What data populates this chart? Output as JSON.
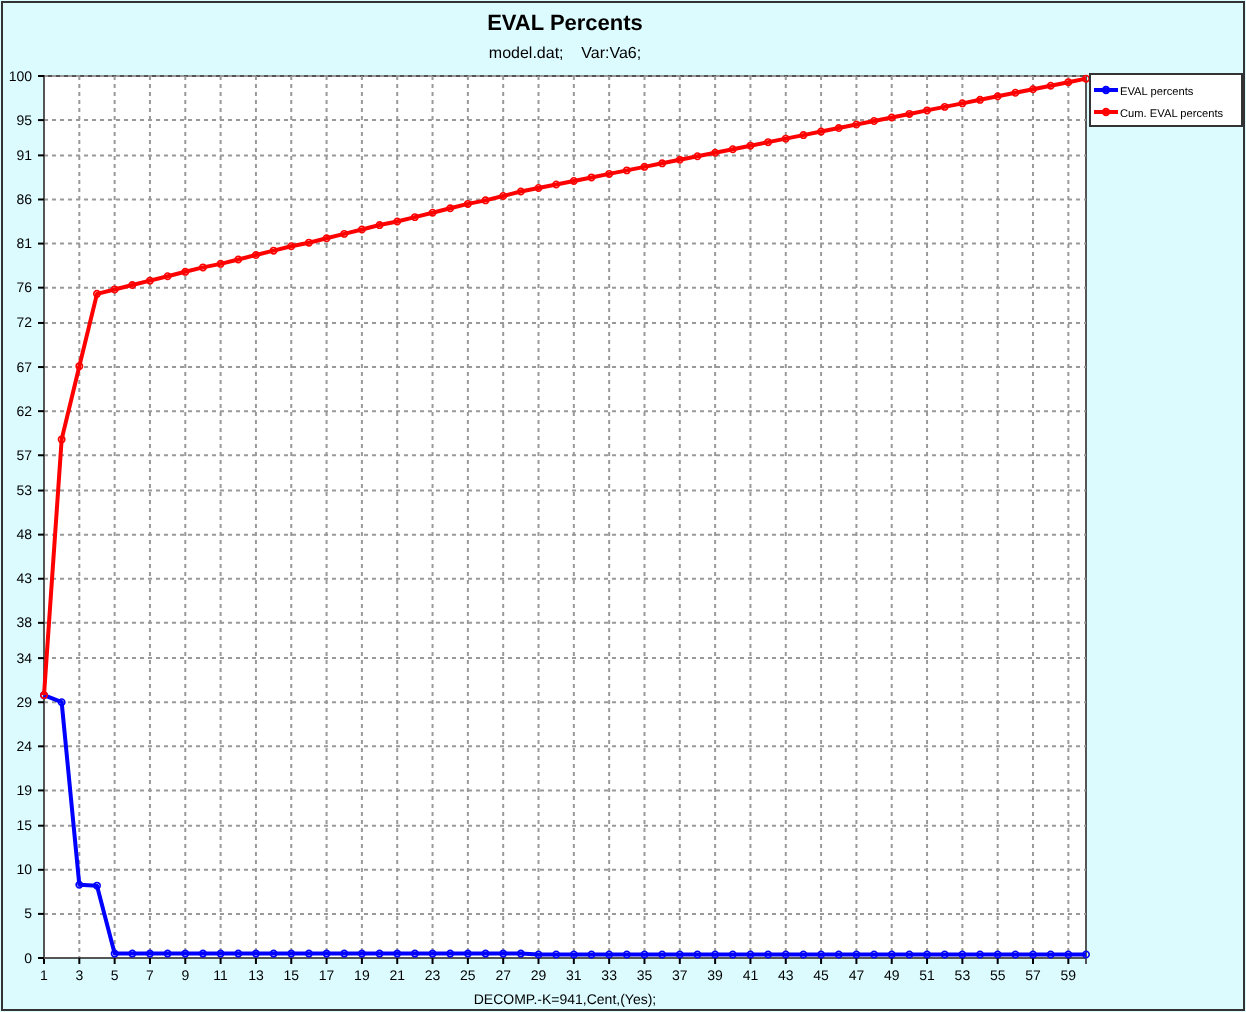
{
  "chart_data": {
    "type": "line",
    "title": "EVAL Percents",
    "subtitle": "model.dat;    Var:Va6;",
    "xlabel": "DECOMP.-K=941,Cent,(Yes);",
    "x": [
      1,
      2,
      3,
      4,
      5,
      6,
      7,
      8,
      9,
      10,
      11,
      12,
      13,
      14,
      15,
      16,
      17,
      18,
      19,
      20,
      21,
      22,
      23,
      24,
      25,
      26,
      27,
      28,
      29,
      30,
      31,
      32,
      33,
      34,
      35,
      36,
      37,
      38,
      39,
      40,
      41,
      42,
      43,
      44,
      45,
      46,
      47,
      48,
      49,
      50,
      51,
      52,
      53,
      54,
      55,
      56,
      57,
      58,
      59,
      60
    ],
    "series": [
      {
        "name": "EVAL percents",
        "color": "#0000ff",
        "values": [
          29.8,
          29,
          8.3,
          8.2,
          0.5,
          0.5,
          0.5,
          0.5,
          0.5,
          0.5,
          0.5,
          0.5,
          0.5,
          0.5,
          0.5,
          0.5,
          0.5,
          0.5,
          0.5,
          0.5,
          0.5,
          0.5,
          0.5,
          0.5,
          0.5,
          0.5,
          0.5,
          0.5,
          0.4,
          0.4,
          0.4,
          0.4,
          0.4,
          0.4,
          0.4,
          0.4,
          0.4,
          0.4,
          0.4,
          0.4,
          0.4,
          0.4,
          0.4,
          0.4,
          0.4,
          0.4,
          0.4,
          0.4,
          0.4,
          0.4,
          0.4,
          0.4,
          0.4,
          0.4,
          0.4,
          0.4,
          0.4,
          0.4,
          0.4,
          0.4
        ]
      },
      {
        "name": "Cum. EVAL percents",
        "color": "#ff0000",
        "values": [
          29.8,
          58.8,
          67.1,
          75.3,
          75.8,
          76.3,
          76.8,
          77.3,
          77.8,
          78.3,
          78.7,
          79.2,
          79.7,
          80.2,
          80.7,
          81.1,
          81.6,
          82.1,
          82.6,
          83.1,
          83.5,
          84,
          84.5,
          85,
          85.5,
          85.9,
          86.4,
          86.9,
          87.3,
          87.7,
          88.1,
          88.5,
          88.9,
          89.3,
          89.7,
          90.1,
          90.5,
          90.9,
          91.3,
          91.7,
          92.1,
          92.5,
          92.9,
          93.3,
          93.7,
          94.1,
          94.5,
          94.9,
          95.3,
          95.7,
          96.1,
          96.5,
          96.9,
          97.3,
          97.7,
          98.1,
          98.5,
          98.9,
          99.3,
          99.7
        ]
      }
    ],
    "xlim": [
      1,
      60
    ],
    "xticks": [
      1,
      3,
      5,
      7,
      9,
      11,
      13,
      15,
      17,
      19,
      21,
      23,
      25,
      27,
      29,
      31,
      33,
      35,
      37,
      39,
      41,
      43,
      45,
      47,
      49,
      51,
      53,
      55,
      57,
      59
    ],
    "ylim": [
      0,
      100
    ],
    "yticks": [
      0,
      5,
      10,
      15,
      19,
      24,
      29,
      34,
      38,
      43,
      48,
      53,
      57,
      62,
      67,
      72,
      76,
      81,
      86,
      91,
      95,
      100
    ],
    "grid": true,
    "legend": "top right",
    "marker": "circle",
    "line_style": "solid"
  }
}
